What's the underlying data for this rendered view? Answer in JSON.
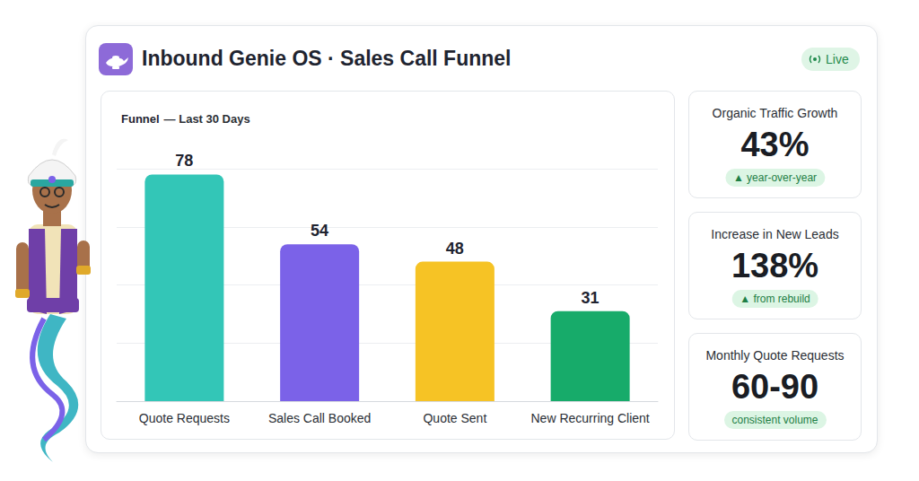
{
  "header": {
    "title": "Inbound Genie OS · Sales Call Funnel",
    "status": "Live"
  },
  "chart_data": {
    "type": "bar",
    "title": "Funnel",
    "subtitle": "— Last 30 Days",
    "categories": [
      "Quote Requests",
      "Sales Call Booked",
      "Quote Sent",
      "New Recurring Client"
    ],
    "values": [
      78,
      54,
      48,
      31
    ],
    "colors": [
      "#33c6b7",
      "#7b62e8",
      "#f6c325",
      "#17ab6a"
    ],
    "ylim": [
      0,
      80
    ],
    "yticks": [
      0,
      20,
      40,
      60,
      80
    ],
    "grid": true,
    "data_labels": true,
    "tick_labels": "x"
  },
  "cards": [
    {
      "label": "Organic Traffic Growth",
      "value": "43%",
      "badge": "▲ year-over-year"
    },
    {
      "label": "Increase in New Leads",
      "value": "138%",
      "badge": "▲ from rebuild"
    },
    {
      "label": "Monthly Quote Requests",
      "value": "60-90",
      "badge": "consistent volume"
    }
  ]
}
